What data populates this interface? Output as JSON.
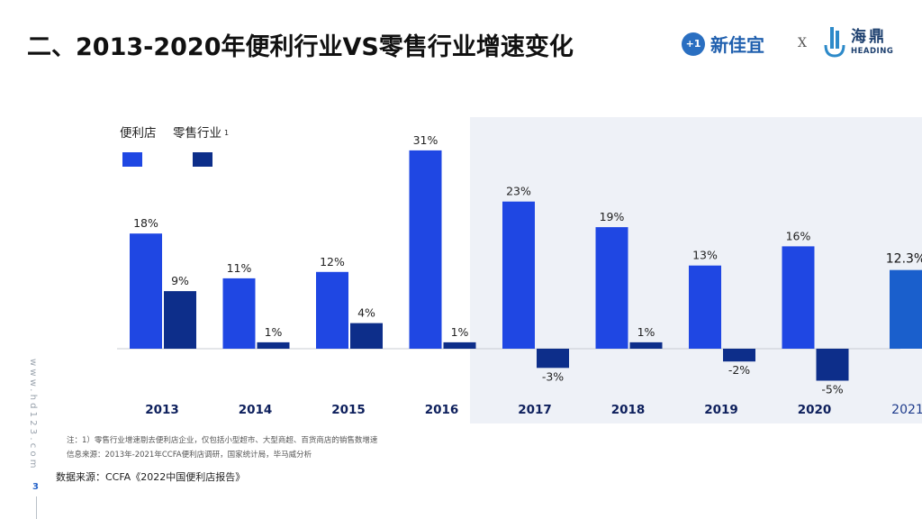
{
  "header": {
    "title": "二、2013-2020年便利行业VS零售行业增速变化",
    "logos": {
      "brand1": "新佳宜",
      "brand1_mark": "+1",
      "separator": "X",
      "brand2_cn": "海鼎",
      "brand2_en": "HEADING"
    }
  },
  "sidebar": {
    "url": "www.hd123.com",
    "page_number": "3"
  },
  "footnotes": {
    "note": "注：1）零售行业增速剔去便利店企业，仅包括小型超市、大型商超、百货商店的销售数增速",
    "info_source": "信息来源：2013年-2021年CCFA便利店调研，国家统计局，毕马威分析",
    "data_source": "数据来源：CCFA《2022中国便利店报告》"
  },
  "colors": {
    "convenience": "#1f47e3",
    "retail": "#0d2e8a",
    "forecast": "#1a5fcc",
    "highlight_bg": "#eef1f7",
    "axis": "#c8ccd3"
  },
  "chart_data": {
    "type": "bar",
    "title": "",
    "xlabel": "",
    "ylabel": "",
    "categories": [
      "2013",
      "2014",
      "2015",
      "2016",
      "2017",
      "2018",
      "2019",
      "2020",
      "2021"
    ],
    "series": [
      {
        "name": "便利店",
        "values": [
          18,
          11,
          12,
          31,
          23,
          19,
          13,
          16,
          null
        ],
        "labels": [
          "18%",
          "11%",
          "12%",
          "31%",
          "23%",
          "19%",
          "13%",
          "16%",
          ""
        ]
      },
      {
        "name": "零售行业",
        "superscript": "1",
        "values": [
          9,
          1,
          4,
          1,
          -3,
          1,
          -2,
          -5,
          null
        ],
        "labels": [
          "9%",
          "1%",
          "4%",
          "1%",
          "-3%",
          "1%",
          "-2%",
          "-5%",
          ""
        ]
      }
    ],
    "forecast": {
      "category": "2021",
      "value": 12.3,
      "label": "12.3%"
    },
    "highlight_from": "2017",
    "ylim": [
      -6,
      32
    ],
    "grid": false,
    "legend": "top-left"
  }
}
